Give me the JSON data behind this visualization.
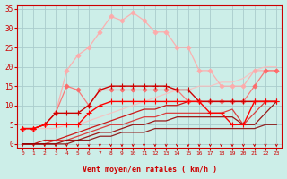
{
  "bg_color": "#cceee8",
  "grid_color": "#aacccc",
  "xlabel": "Vent moyen/en rafales ( km/h )",
  "xlabel_color": "#cc0000",
  "tick_color": "#cc0000",
  "arrow_color": "#cc0000",
  "xlim": [
    -0.5,
    23.5
  ],
  "ylim": [
    -1,
    36
  ],
  "yticks": [
    0,
    5,
    10,
    15,
    20,
    25,
    30,
    35
  ],
  "xticks": [
    0,
    1,
    2,
    3,
    4,
    5,
    6,
    7,
    8,
    9,
    10,
    11,
    12,
    13,
    14,
    15,
    16,
    17,
    18,
    19,
    20,
    21,
    22,
    23
  ],
  "lines": [
    {
      "x": [
        0,
        1,
        2,
        3,
        4,
        5,
        6,
        7,
        8,
        9,
        10,
        11,
        12,
        13,
        14,
        15,
        16,
        17,
        18,
        19,
        20,
        21,
        22,
        23
      ],
      "y": [
        4,
        4,
        5,
        8,
        19,
        23,
        25,
        29,
        33,
        32,
        34,
        32,
        29,
        29,
        25,
        25,
        19,
        19,
        15,
        15,
        15,
        19,
        19,
        19
      ],
      "color": "#ffaaaa",
      "lw": 0.9,
      "marker": "D",
      "ms": 2.5,
      "alpha": 0.9
    },
    {
      "x": [
        0,
        1,
        2,
        3,
        4,
        5,
        6,
        7,
        8,
        9,
        10,
        11,
        12,
        13,
        14,
        15,
        16,
        17,
        18,
        19,
        20,
        21,
        22,
        23
      ],
      "y": [
        4,
        4,
        5,
        8,
        15,
        14,
        10,
        14,
        14,
        14,
        14,
        14,
        14,
        14,
        14,
        11,
        11,
        11,
        11,
        11,
        11,
        15,
        19,
        19
      ],
      "color": "#ff6666",
      "lw": 0.9,
      "marker": "D",
      "ms": 2.5,
      "alpha": 0.85
    },
    {
      "x": [
        0,
        1,
        2,
        3,
        4,
        5,
        6,
        7,
        8,
        9,
        10,
        11,
        12,
        13,
        14,
        15,
        16,
        17,
        18,
        19,
        20,
        21,
        22,
        23
      ],
      "y": [
        4,
        4,
        5,
        8,
        8,
        8,
        10,
        14,
        15,
        15,
        15,
        15,
        15,
        15,
        14,
        14,
        11,
        11,
        11,
        11,
        11,
        11,
        11,
        11
      ],
      "color": "#cc0000",
      "lw": 1.0,
      "marker": "+",
      "ms": 4,
      "alpha": 1.0
    },
    {
      "x": [
        0,
        1,
        2,
        3,
        4,
        5,
        6,
        7,
        8,
        9,
        10,
        11,
        12,
        13,
        14,
        15,
        16,
        17,
        18,
        19,
        20,
        21,
        22,
        23
      ],
      "y": [
        4,
        4,
        5,
        5,
        5,
        5,
        8,
        10,
        11,
        11,
        11,
        11,
        11,
        11,
        11,
        11,
        11,
        8,
        8,
        5,
        5,
        11,
        11,
        11
      ],
      "color": "#ff0000",
      "lw": 1.0,
      "marker": "+",
      "ms": 4,
      "alpha": 1.0
    },
    {
      "x": [
        0,
        1,
        2,
        3,
        4,
        5,
        6,
        7,
        8,
        9,
        10,
        11,
        12,
        13,
        14,
        15,
        16,
        17,
        18,
        19,
        20,
        21,
        22,
        23
      ],
      "y": [
        4,
        4,
        4,
        4,
        5,
        5,
        6,
        7,
        8,
        9,
        10,
        11,
        12,
        13,
        14,
        14,
        15,
        15,
        16,
        16,
        17,
        19,
        20,
        20
      ],
      "color": "#ffbbbb",
      "lw": 0.9,
      "marker": null,
      "ms": 0,
      "alpha": 0.8
    },
    {
      "x": [
        0,
        1,
        2,
        3,
        4,
        5,
        6,
        7,
        8,
        9,
        10,
        11,
        12,
        13,
        14,
        15,
        16,
        17,
        18,
        19,
        20,
        21,
        22,
        23
      ],
      "y": [
        0,
        0,
        1,
        1,
        2,
        3,
        4,
        5,
        6,
        7,
        8,
        9,
        9,
        10,
        10,
        11,
        11,
        11,
        11,
        11,
        11,
        11,
        11,
        11
      ],
      "color": "#cc0000",
      "lw": 0.9,
      "marker": null,
      "ms": 0,
      "alpha": 0.9
    },
    {
      "x": [
        0,
        1,
        2,
        3,
        4,
        5,
        6,
        7,
        8,
        9,
        10,
        11,
        12,
        13,
        14,
        15,
        16,
        17,
        18,
        19,
        20,
        21,
        22,
        23
      ],
      "y": [
        0,
        0,
        0,
        1,
        1,
        2,
        3,
        4,
        5,
        5,
        6,
        7,
        7,
        8,
        8,
        8,
        8,
        8,
        8,
        9,
        5,
        8,
        11,
        11
      ],
      "color": "#dd2222",
      "lw": 0.9,
      "marker": null,
      "ms": 0,
      "alpha": 0.85
    },
    {
      "x": [
        0,
        1,
        2,
        3,
        4,
        5,
        6,
        7,
        8,
        9,
        10,
        11,
        12,
        13,
        14,
        15,
        16,
        17,
        18,
        19,
        20,
        21,
        22,
        23
      ],
      "y": [
        0,
        0,
        0,
        0,
        1,
        1,
        2,
        3,
        3,
        4,
        5,
        5,
        6,
        6,
        7,
        7,
        7,
        7,
        7,
        7,
        5,
        5,
        8,
        11
      ],
      "color": "#990000",
      "lw": 0.9,
      "marker": null,
      "ms": 0,
      "alpha": 0.9
    },
    {
      "x": [
        0,
        1,
        2,
        3,
        4,
        5,
        6,
        7,
        8,
        9,
        10,
        11,
        12,
        13,
        14,
        15,
        16,
        17,
        18,
        19,
        20,
        21,
        22,
        23
      ],
      "y": [
        0,
        0,
        0,
        0,
        0,
        1,
        1,
        2,
        2,
        3,
        3,
        3,
        4,
        4,
        4,
        4,
        4,
        4,
        4,
        4,
        4,
        4,
        5,
        5
      ],
      "color": "#880000",
      "lw": 0.9,
      "marker": null,
      "ms": 0,
      "alpha": 0.85
    }
  ]
}
